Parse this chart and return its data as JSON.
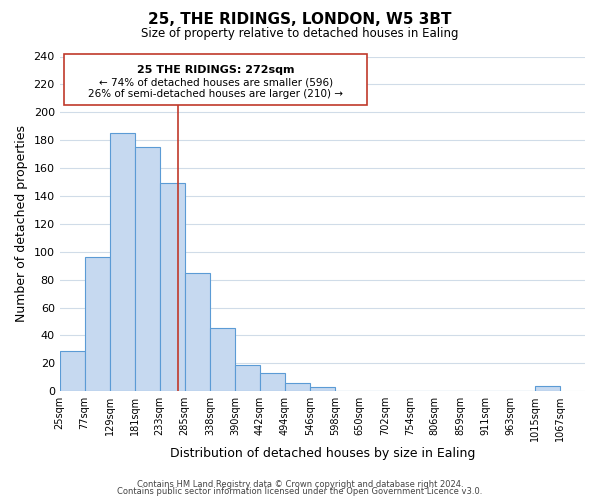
{
  "title": "25, THE RIDINGS, LONDON, W5 3BT",
  "subtitle": "Size of property relative to detached houses in Ealing",
  "xlabel": "Distribution of detached houses by size in Ealing",
  "ylabel": "Number of detached properties",
  "bar_left_edges": [
    25,
    77,
    129,
    181,
    233,
    285,
    338,
    390,
    442,
    494,
    546,
    598,
    650,
    702,
    754,
    806,
    859,
    911,
    963,
    1015
  ],
  "bar_widths": [
    52,
    52,
    52,
    52,
    52,
    53,
    52,
    52,
    52,
    52,
    52,
    52,
    52,
    52,
    52,
    53,
    52,
    52,
    52,
    52
  ],
  "bar_heights": [
    29,
    96,
    185,
    175,
    149,
    85,
    45,
    19,
    13,
    6,
    3,
    0,
    0,
    0,
    0,
    0,
    0,
    0,
    0,
    4
  ],
  "bar_color": "#c6d9f0",
  "bar_edge_color": "#5b9bd5",
  "xlim": [
    25,
    1119
  ],
  "ylim": [
    0,
    240
  ],
  "yticks": [
    0,
    20,
    40,
    60,
    80,
    100,
    120,
    140,
    160,
    180,
    200,
    220,
    240
  ],
  "xtick_labels": [
    "25sqm",
    "77sqm",
    "129sqm",
    "181sqm",
    "233sqm",
    "285sqm",
    "338sqm",
    "390sqm",
    "442sqm",
    "494sqm",
    "546sqm",
    "598sqm",
    "650sqm",
    "702sqm",
    "754sqm",
    "806sqm",
    "859sqm",
    "911sqm",
    "963sqm",
    "1015sqm",
    "1067sqm"
  ],
  "xtick_positions": [
    25,
    77,
    129,
    181,
    233,
    285,
    338,
    390,
    442,
    494,
    546,
    598,
    650,
    702,
    754,
    806,
    859,
    911,
    963,
    1015,
    1067
  ],
  "property_line_x": 272,
  "property_line_color": "#c0392b",
  "ann_line1": "25 THE RIDINGS: 272sqm",
  "ann_line2": "← 74% of detached houses are smaller (596)",
  "ann_line3": "26% of semi-detached houses are larger (210) →",
  "grid_color": "#d0dce8",
  "background_color": "#ffffff",
  "footer_line1": "Contains HM Land Registry data © Crown copyright and database right 2024.",
  "footer_line2": "Contains public sector information licensed under the Open Government Licence v3.0."
}
